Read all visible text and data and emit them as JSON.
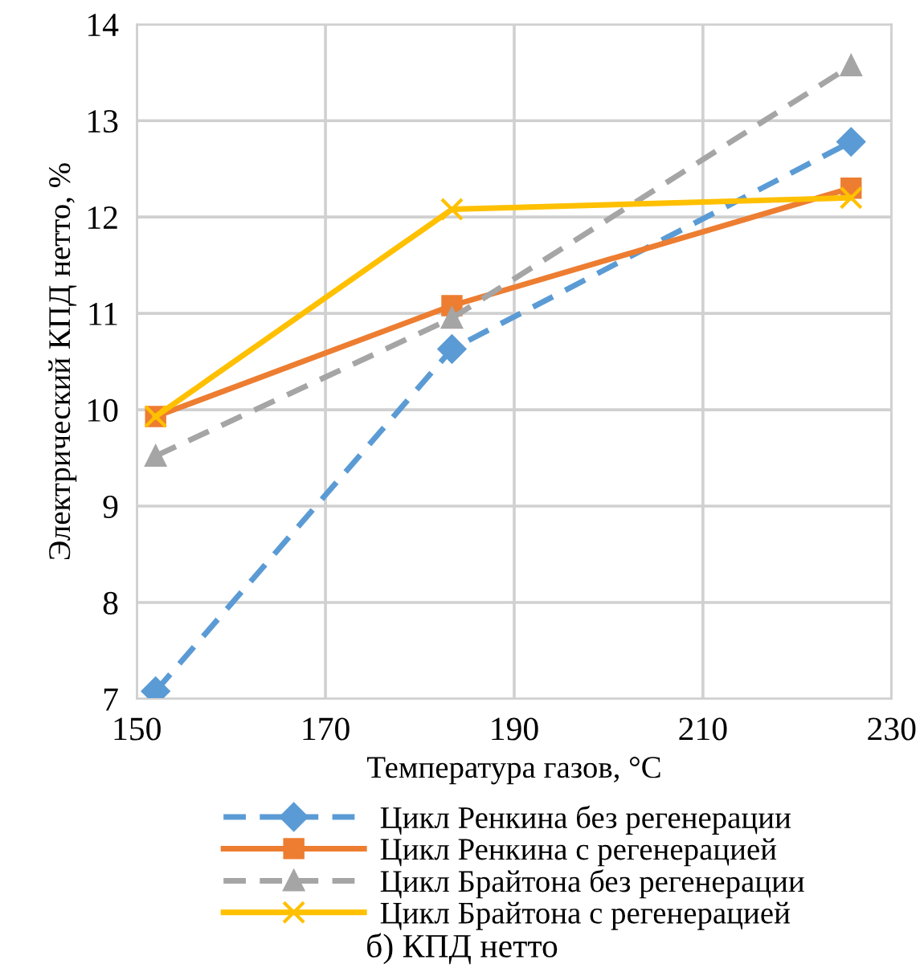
{
  "chart_data": {
    "type": "line",
    "xlabel": "Температура газов, °C",
    "ylabel": "Электрический КПД нетто, %",
    "x": [
      152,
      183.4,
      225.7
    ],
    "series": [
      {
        "name": "Цикл Ренкина без регенерации",
        "color": "#5b9bd5",
        "values": [
          7.08,
          10.63,
          12.78
        ],
        "marker": "diamond",
        "line_style": "dashed"
      },
      {
        "name": "Цикл Ренкина с регенерацией",
        "color": "#ed7d31",
        "values": [
          9.93,
          11.08,
          12.3
        ],
        "marker": "square",
        "line_style": "solid"
      },
      {
        "name": "Цикл Брайтона без регенерации",
        "color": "#a5a5a5",
        "values": [
          9.52,
          10.95,
          13.57
        ],
        "marker": "triangle",
        "line_style": "dashed"
      },
      {
        "name": "Цикл Брайтона с регенерацией",
        "color": "#ffc000",
        "values": [
          9.93,
          12.08,
          12.2
        ],
        "marker": "cross",
        "line_style": "solid"
      }
    ],
    "xlim": [
      150,
      230
    ],
    "xticks": [
      150,
      170,
      190,
      210,
      230
    ],
    "ylim": [
      7,
      14
    ],
    "yticks": [
      7,
      8,
      9,
      10,
      11,
      12,
      13,
      14
    ],
    "grid": true,
    "legend": "bottom",
    "annotations": [
      "б) КПД нетто"
    ]
  }
}
